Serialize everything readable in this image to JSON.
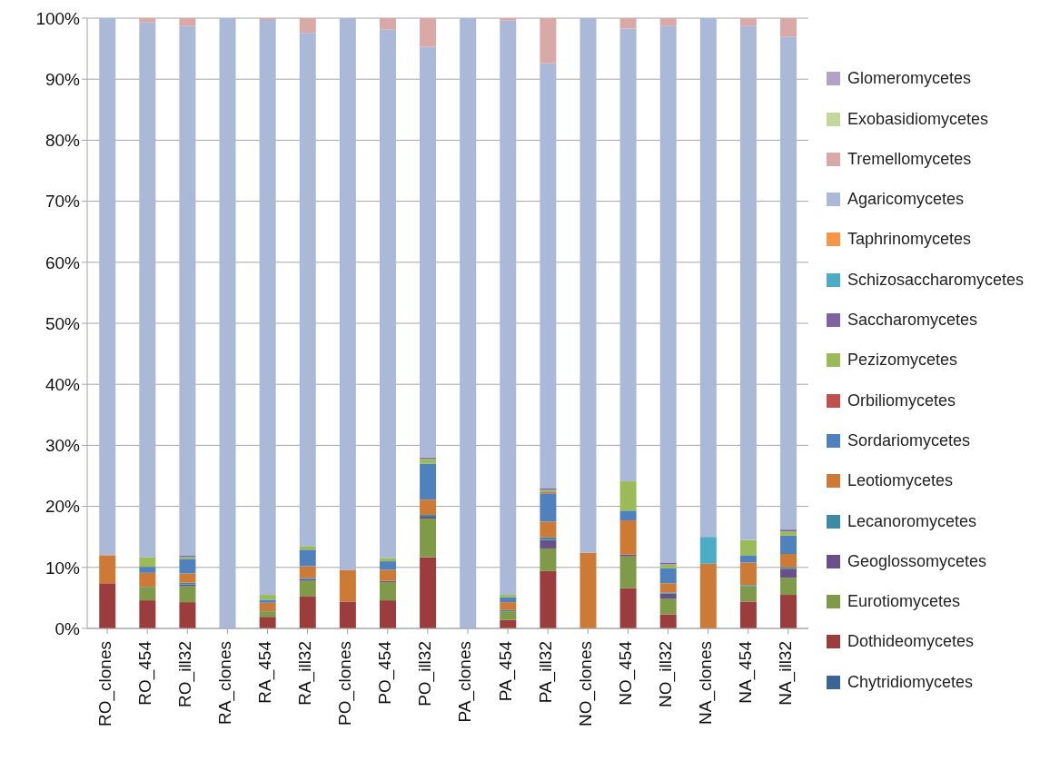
{
  "chart_data": {
    "type": "bar",
    "stacked": true,
    "categories": [
      "RO_clones",
      "RO_454",
      "RO_ill32",
      "RA_clones",
      "RA_454",
      "RA_ill32",
      "PO_clones",
      "PO_454",
      "PO_ill32",
      "PA_clones",
      "PA_454",
      "PA_ill32",
      "NO_clones",
      "NO_454",
      "NO_ill32",
      "NA_clones",
      "NA_454",
      "NA_ill32"
    ],
    "series": [
      {
        "name": "Chytridiomycetes",
        "color": "#3c6496",
        "values": [
          0,
          0,
          0,
          0,
          0,
          0,
          0,
          0,
          0,
          0,
          0,
          0,
          0,
          0,
          0,
          0,
          0,
          0
        ]
      },
      {
        "name": "Dothideomycetes",
        "color": "#9c3d3d",
        "values": [
          7.4,
          4.6,
          4.3,
          0,
          1.9,
          5.3,
          4.4,
          4.6,
          11.7,
          0,
          1.4,
          9.4,
          0,
          6.6,
          2.3,
          0,
          4.4,
          5.5
        ]
      },
      {
        "name": "Eurotiomycetes",
        "color": "#7f9a48",
        "values": [
          0,
          2.1,
          2.6,
          0,
          0.8,
          2.5,
          0,
          3.0,
          6.3,
          0,
          1.4,
          3.7,
          0,
          5.2,
          2.6,
          0,
          2.5,
          2.8
        ]
      },
      {
        "name": "Geoglossomycetes",
        "color": "#6a5088",
        "values": [
          0,
          0,
          0.3,
          0,
          0,
          0.3,
          0,
          0.2,
          0.3,
          0,
          0,
          1.4,
          0,
          0.3,
          0.8,
          0,
          0,
          1.4
        ]
      },
      {
        "name": "Lecanoromycetes",
        "color": "#3a8ba3",
        "values": [
          0,
          0.1,
          0.3,
          0,
          0.1,
          0.2,
          0,
          0,
          0.3,
          0,
          0.2,
          0.4,
          0,
          0,
          0.2,
          0,
          0.2,
          0.3
        ]
      },
      {
        "name": "Leotiomycetes",
        "color": "#cd7a36",
        "values": [
          4.6,
          2.3,
          1.5,
          0,
          1.4,
          1.9,
          5.2,
          1.8,
          2.5,
          0,
          1.3,
          2.6,
          12.4,
          5.6,
          1.5,
          10.6,
          3.7,
          2.2
        ]
      },
      {
        "name": "Sordariomycetes",
        "color": "#4f81bd",
        "values": [
          0,
          1.0,
          2.4,
          0,
          0.5,
          2.7,
          0,
          1.4,
          5.9,
          0,
          0.8,
          4.6,
          0,
          1.6,
          2.5,
          0,
          1.2,
          3.0
        ]
      },
      {
        "name": "Orbiliomycetes",
        "color": "#c0504d",
        "values": [
          0,
          0,
          0,
          0,
          0,
          0,
          0,
          0,
          0,
          0,
          0,
          0.2,
          0,
          0,
          0,
          0,
          0,
          0
        ]
      },
      {
        "name": "Pezizomycetes",
        "color": "#9bbb59",
        "values": [
          0,
          1.6,
          0.3,
          0,
          0.8,
          0.6,
          0,
          0.5,
          0.8,
          0,
          0.4,
          0.4,
          0,
          4.8,
          0.6,
          0,
          2.5,
          0.7
        ]
      },
      {
        "name": "Saccharomycetes",
        "color": "#8064a2",
        "values": [
          0,
          0,
          0.2,
          0,
          0,
          0,
          0,
          0,
          0.2,
          0,
          0,
          0.3,
          0,
          0,
          0.3,
          0,
          0,
          0.3
        ]
      },
      {
        "name": "Schizosaccharomycetes",
        "color": "#4bacc6",
        "values": [
          0,
          0,
          0,
          0,
          0,
          0,
          0,
          0,
          0,
          0,
          0,
          0,
          0,
          0,
          0,
          4.4,
          0,
          0
        ]
      },
      {
        "name": "Taphrinomycetes",
        "color": "#f79646",
        "values": [
          0,
          0,
          0,
          0,
          0,
          0,
          0,
          0,
          0,
          0,
          0,
          0,
          0,
          0,
          0,
          0,
          0,
          0
        ]
      },
      {
        "name": "Agaricomycetes",
        "color": "#aab9d8",
        "values": [
          88.0,
          87.6,
          86.8,
          100,
          94.2,
          84.1,
          90.4,
          86.6,
          67.3,
          100,
          94.1,
          69.6,
          87.6,
          74.2,
          87.9,
          85.0,
          84.2,
          80.8
        ]
      },
      {
        "name": "Tremellomycetes",
        "color": "#d9a9a8",
        "values": [
          0,
          0.7,
          1.3,
          0,
          0.3,
          2.4,
          0,
          1.9,
          4.7,
          0,
          0.4,
          7.4,
          0,
          1.7,
          1.3,
          0,
          1.3,
          3.0
        ]
      },
      {
        "name": "Exobasidiomycetes",
        "color": "#c3d69b",
        "values": [
          0,
          0,
          0,
          0,
          0,
          0,
          0,
          0,
          0,
          0,
          0,
          0,
          0,
          0,
          0,
          0,
          0,
          0
        ]
      },
      {
        "name": "Glomeromycetes",
        "color": "#b3a2c7",
        "values": [
          0,
          0,
          0,
          0,
          0,
          0,
          0,
          0,
          0,
          0,
          0,
          0,
          0,
          0,
          0,
          0,
          0,
          0
        ]
      }
    ],
    "ylim": [
      0,
      100
    ],
    "yticks": [
      {
        "value": 0,
        "label": "0%"
      },
      {
        "value": 10,
        "label": "10%"
      },
      {
        "value": 20,
        "label": "20%"
      },
      {
        "value": 30,
        "label": "30%"
      },
      {
        "value": 40,
        "label": "40%"
      },
      {
        "value": 50,
        "label": "50%"
      },
      {
        "value": 60,
        "label": "60%"
      },
      {
        "value": 70,
        "label": "70%"
      },
      {
        "value": 80,
        "label": "80%"
      },
      {
        "value": 90,
        "label": "90%"
      },
      {
        "value": 100,
        "label": "100%"
      }
    ],
    "grid": "y",
    "legend": "right"
  }
}
